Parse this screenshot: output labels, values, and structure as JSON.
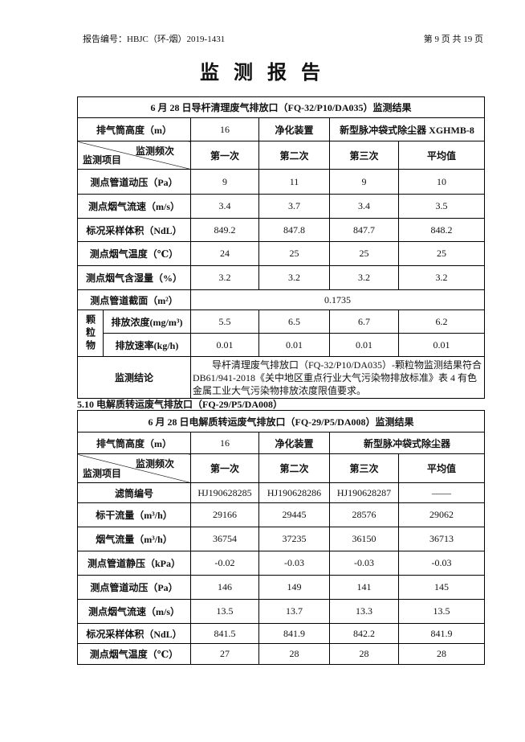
{
  "header": {
    "report_no": "报告编号：HBJC（环-烟）2019-1431",
    "page": "第 9 页 共 19 页"
  },
  "title": "监 测 报 告",
  "table1": {
    "title": "6 月 28 日导杆清理废气排放口（FQ-32/P10/DA035）监测结果",
    "stack": {
      "label": "排气筒高度（m）",
      "value": 16,
      "device_label": "净化装置",
      "device": "新型脉冲袋式除尘器 XGHMB-8"
    },
    "header": {
      "freq": "监测频次",
      "item": "监测项目",
      "cols": [
        "第一次",
        "第二次",
        "第三次",
        "平均值"
      ]
    },
    "rows": [
      {
        "label": "测点管道动压（Pa）",
        "values": [
          9,
          11,
          9,
          10
        ]
      },
      {
        "label": "测点烟气流速（m/s）",
        "values": [
          3.4,
          3.7,
          3.4,
          3.5
        ]
      },
      {
        "label": "标况采样体积（NdL）",
        "values": [
          849.2,
          847.8,
          847.7,
          848.2
        ]
      },
      {
        "label": "测点烟气温度（℃）",
        "values": [
          24,
          25,
          25,
          25
        ]
      },
      {
        "label": "测点烟气含湿量（%）",
        "values": [
          3.2,
          3.2,
          3.2,
          3.2
        ]
      }
    ],
    "cross_section": {
      "label": "测点管道截面（m²）",
      "value": 0.1735
    },
    "particulate": {
      "group": "颗粒物",
      "rows": [
        {
          "label": "排放浓度(mg/m³)",
          "values": [
            5.5,
            6.5,
            6.7,
            6.2
          ]
        },
        {
          "label": "排放速率(kg/h)",
          "values": [
            0.01,
            0.01,
            0.01,
            0.01
          ]
        }
      ]
    },
    "conclusion": {
      "label": "监测结论",
      "text": "导杆清理废气排放口（FQ-32/P10/DA035）-颗粒物监测结果符合 DB61/941-2018《关中地区重点行业大气污染物排放标准》表 4 有色金属工业大气污染物排放浓度限值要求。"
    }
  },
  "section": "5.10 电解质转运废气排放口（FQ-29/P5/DA008）",
  "table2": {
    "title": "6 月 28 日电解质转运废气排放口（FQ-29/P5/DA008）监测结果",
    "stack": {
      "label": "排气筒高度（m）",
      "value": 16,
      "device_label": "净化装置",
      "device": "新型脉冲袋式除尘器"
    },
    "header": {
      "freq": "监测频次",
      "item": "监测项目",
      "cols": [
        "第一次",
        "第二次",
        "第三次",
        "平均值"
      ]
    },
    "rows": [
      {
        "label": "滤筒编号",
        "values": [
          "HJ190628285",
          "HJ190628286",
          "HJ190628287",
          "——"
        ]
      },
      {
        "label": "标干流量（m³/h）",
        "values": [
          29166,
          29445,
          28576,
          29062
        ]
      },
      {
        "label": "烟气流量（m³/h）",
        "values": [
          36754,
          37235,
          36150,
          36713
        ]
      },
      {
        "label": "测点管道静压（kPa）",
        "values": [
          -0.02,
          -0.03,
          -0.03,
          -0.03
        ]
      },
      {
        "label": "测点管道动压（Pa）",
        "values": [
          146,
          149,
          141,
          145
        ]
      },
      {
        "label": "测点烟气流速（m/s）",
        "values": [
          13.5,
          13.7,
          13.3,
          13.5
        ]
      },
      {
        "label": "标况采样体积（NdL）",
        "values": [
          841.5,
          841.9,
          842.2,
          841.9
        ]
      },
      {
        "label": "测点烟气温度（℃）",
        "values": [
          27,
          28,
          28,
          28
        ]
      }
    ]
  }
}
